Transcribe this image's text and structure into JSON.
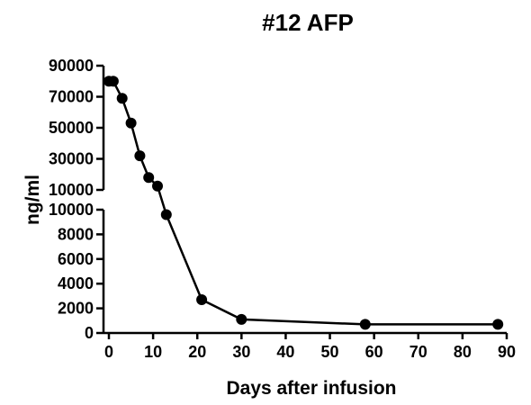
{
  "chart_data": {
    "type": "line",
    "title": "#12 AFP",
    "xlabel": "Days after infusion",
    "ylabel": "ng/ml",
    "xlim": [
      0,
      90
    ],
    "x_ticks": [
      0,
      10,
      20,
      30,
      40,
      50,
      60,
      70,
      80,
      90
    ],
    "y_axis_break": true,
    "lower_segment": {
      "ylim": [
        0,
        10000
      ],
      "ticks": [
        0,
        2000,
        4000,
        6000,
        8000,
        10000
      ]
    },
    "upper_segment": {
      "ylim": [
        10000,
        90000
      ],
      "ticks": [
        10000,
        30000,
        50000,
        70000,
        90000
      ]
    },
    "grid": false,
    "series": [
      {
        "x": [
          0,
          1,
          3,
          5,
          7,
          9,
          11,
          13,
          21,
          30,
          58,
          88
        ],
        "y": [
          80000,
          80000,
          69000,
          53000,
          32000,
          18000,
          12500,
          9600,
          2700,
          1100,
          700,
          700
        ],
        "color": "#000000",
        "marker": "circle"
      }
    ]
  }
}
